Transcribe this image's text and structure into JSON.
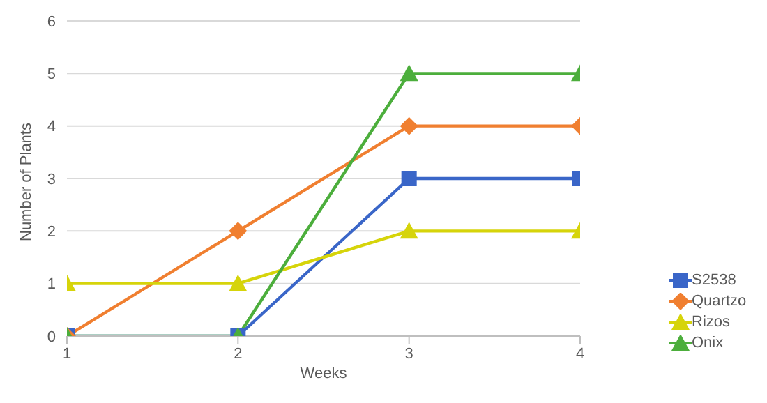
{
  "chart_data": {
    "type": "line",
    "xlabel": "Weeks",
    "ylabel": "Number of Plants",
    "x": [
      1,
      2,
      3,
      4
    ],
    "xlim": [
      1,
      4
    ],
    "xticks": [
      1,
      2,
      3,
      4
    ],
    "ylim": [
      0,
      6
    ],
    "yticks": [
      0,
      1,
      2,
      3,
      4,
      5,
      6
    ],
    "grid": "y",
    "legend": "right",
    "line_style": "solid",
    "series": [
      {
        "name": "S2538",
        "color": "#3a66c8",
        "marker": "square",
        "values": [
          0,
          0,
          3,
          3
        ]
      },
      {
        "name": "Quartzo",
        "color": "#f07f30",
        "marker": "diamond",
        "values": [
          0,
          2,
          4,
          4
        ]
      },
      {
        "name": "Rizos",
        "color": "#d6d40a",
        "marker": "triangle",
        "values": [
          1,
          1,
          2,
          2
        ]
      },
      {
        "name": "Onix",
        "color": "#4cae3c",
        "marker": "triangle",
        "values": [
          0,
          0,
          5,
          5
        ]
      }
    ]
  }
}
